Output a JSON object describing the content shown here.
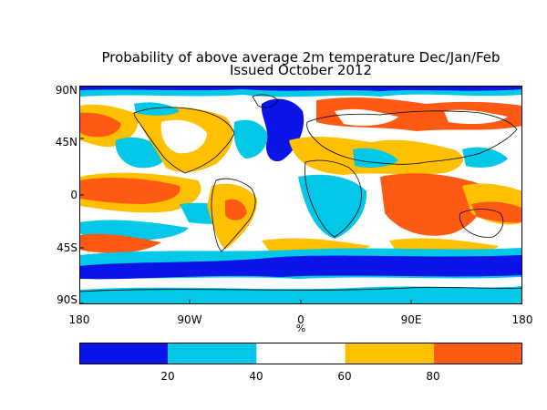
{
  "title_line1": "Probability of above average 2m temperature Dec/Jan/Feb",
  "title_line2": "Issued October 2012",
  "lat_labels": [
    "90N",
    "45N",
    "0",
    "45S",
    "90S"
  ],
  "lon_labels": [
    "180",
    "90W",
    "0",
    "90E",
    "180"
  ],
  "unit_label": "%",
  "colorbar": {
    "tick_labels": [
      "20",
      "40",
      "60",
      "80"
    ],
    "colors": [
      "#0a14e6",
      "#00c8e6",
      "#ffffff",
      "#ffc000",
      "#ff5a14"
    ]
  },
  "map_colors": {
    "very_low": "#0a14e6",
    "low": "#00c8e6",
    "normal": "#ffffff",
    "high": "#ffc000",
    "very_high": "#ff5a14"
  }
}
